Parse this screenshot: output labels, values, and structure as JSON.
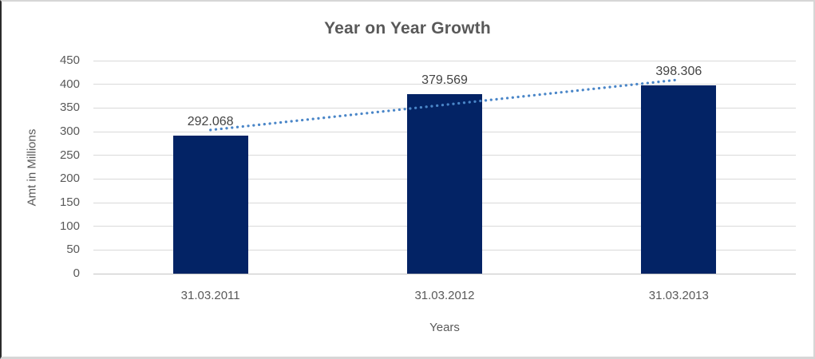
{
  "chart_data": {
    "type": "bar",
    "title": "Year on Year Growth",
    "categories": [
      "31.03.2011",
      "31.03.2012",
      "31.03.2013"
    ],
    "values": [
      292.068,
      379.569,
      398.306
    ],
    "data_labels": [
      "292.068",
      "379.569",
      "398.306"
    ],
    "xlabel": "Years",
    "ylabel": "Amt in Millions",
    "ylim": [
      0,
      450
    ],
    "ytick_step": 50,
    "yticks": [
      "450",
      "400",
      "350",
      "300",
      "250",
      "200",
      "150",
      "100",
      "50",
      "0"
    ],
    "grid": true,
    "legend": "none",
    "bar_color": "#032365",
    "trendline": {
      "type": "linear",
      "style": "dotted",
      "color": "#4a86c8"
    },
    "text_color": "#595959",
    "gridline_color": "#d9d9d9"
  }
}
